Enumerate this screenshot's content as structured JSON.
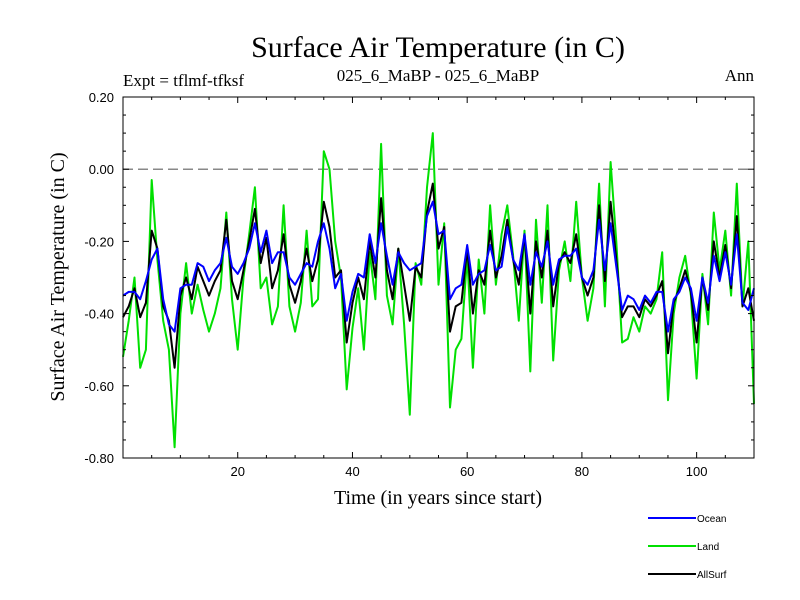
{
  "chart_data": {
    "type": "line",
    "title": "Surface Air Temperature (in C)",
    "subtitle_left": "Expt = tflmf-tfksf",
    "subtitle_center": "025_6_MaBP - 025_6_MaBP",
    "subtitle_right": "Ann",
    "xlabel": "Time (in years since start)",
    "ylabel": "Surface Air Temperature (in C)",
    "xlim": [
      0,
      110
    ],
    "ylim": [
      -0.8,
      0.2
    ],
    "xticks": [
      20,
      40,
      60,
      80,
      100
    ],
    "xtick_labels": [
      "20",
      "40",
      "60",
      "80",
      "100"
    ],
    "yticks": [
      0.2,
      0.0,
      -0.2,
      -0.4,
      -0.6,
      -0.8
    ],
    "ytick_labels": [
      "0.20",
      "0.00",
      "-0.20",
      "-0.40",
      "-0.60",
      "-0.80"
    ],
    "reference_line": {
      "y": 0.0,
      "style": "dashed"
    },
    "legend_position": "bottom-right",
    "x": [
      0,
      1,
      2,
      3,
      4,
      5,
      6,
      7,
      8,
      9,
      10,
      11,
      12,
      13,
      14,
      15,
      16,
      17,
      18,
      19,
      20,
      21,
      22,
      23,
      24,
      25,
      26,
      27,
      28,
      29,
      30,
      31,
      32,
      33,
      34,
      35,
      36,
      37,
      38,
      39,
      40,
      41,
      42,
      43,
      44,
      45,
      46,
      47,
      48,
      49,
      50,
      51,
      52,
      53,
      54,
      55,
      56,
      57,
      58,
      59,
      60,
      61,
      62,
      63,
      64,
      65,
      66,
      67,
      68,
      69,
      70,
      71,
      72,
      73,
      74,
      75,
      76,
      77,
      78,
      79,
      80,
      81,
      82,
      83,
      84,
      85,
      86,
      87,
      88,
      89,
      90,
      91,
      92,
      93,
      94,
      95,
      96,
      97,
      98,
      99,
      100,
      101,
      102,
      103,
      104,
      105,
      106,
      107,
      108,
      109,
      110
    ],
    "series": [
      {
        "name": "Land",
        "color": "#00e000",
        "values": [
          -0.52,
          -0.42,
          -0.3,
          -0.55,
          -0.5,
          -0.03,
          -0.25,
          -0.42,
          -0.5,
          -0.77,
          -0.4,
          -0.26,
          -0.4,
          -0.32,
          -0.39,
          -0.45,
          -0.4,
          -0.33,
          -0.12,
          -0.36,
          -0.5,
          -0.3,
          -0.18,
          -0.05,
          -0.33,
          -0.3,
          -0.43,
          -0.38,
          -0.1,
          -0.38,
          -0.45,
          -0.37,
          -0.17,
          -0.38,
          -0.36,
          0.05,
          0.0,
          -0.2,
          -0.3,
          -0.61,
          -0.44,
          -0.33,
          -0.5,
          -0.23,
          -0.36,
          0.07,
          -0.35,
          -0.43,
          -0.22,
          -0.43,
          -0.68,
          -0.26,
          -0.32,
          -0.05,
          0.1,
          -0.32,
          -0.15,
          -0.66,
          -0.5,
          -0.47,
          -0.24,
          -0.55,
          -0.25,
          -0.4,
          -0.1,
          -0.32,
          -0.18,
          -0.1,
          -0.24,
          -0.42,
          -0.17,
          -0.56,
          -0.14,
          -0.37,
          -0.1,
          -0.53,
          -0.28,
          -0.2,
          -0.31,
          -0.09,
          -0.3,
          -0.42,
          -0.33,
          -0.04,
          -0.38,
          0.02,
          -0.2,
          -0.48,
          -0.47,
          -0.41,
          -0.45,
          -0.38,
          -0.4,
          -0.36,
          -0.23,
          -0.64,
          -0.4,
          -0.3,
          -0.24,
          -0.35,
          -0.58,
          -0.29,
          -0.43,
          -0.12,
          -0.28,
          -0.17,
          -0.35,
          -0.04,
          -0.38,
          -0.2,
          -0.65
        ]
      },
      {
        "name": "AllSurf",
        "color": "#000000",
        "values": [
          -0.41,
          -0.38,
          -0.33,
          -0.41,
          -0.37,
          -0.17,
          -0.22,
          -0.38,
          -0.42,
          -0.55,
          -0.35,
          -0.3,
          -0.36,
          -0.27,
          -0.31,
          -0.35,
          -0.31,
          -0.28,
          -0.14,
          -0.31,
          -0.36,
          -0.28,
          -0.2,
          -0.11,
          -0.26,
          -0.19,
          -0.33,
          -0.28,
          -0.18,
          -0.32,
          -0.37,
          -0.31,
          -0.22,
          -0.31,
          -0.25,
          -0.09,
          -0.16,
          -0.3,
          -0.28,
          -0.48,
          -0.37,
          -0.3,
          -0.36,
          -0.2,
          -0.3,
          -0.08,
          -0.28,
          -0.36,
          -0.22,
          -0.32,
          -0.42,
          -0.27,
          -0.3,
          -0.12,
          -0.04,
          -0.22,
          -0.16,
          -0.45,
          -0.38,
          -0.37,
          -0.22,
          -0.4,
          -0.28,
          -0.32,
          -0.17,
          -0.3,
          -0.24,
          -0.14,
          -0.25,
          -0.32,
          -0.18,
          -0.4,
          -0.2,
          -0.3,
          -0.17,
          -0.38,
          -0.26,
          -0.23,
          -0.26,
          -0.18,
          -0.3,
          -0.35,
          -0.3,
          -0.1,
          -0.31,
          -0.09,
          -0.25,
          -0.41,
          -0.38,
          -0.38,
          -0.41,
          -0.36,
          -0.38,
          -0.35,
          -0.31,
          -0.51,
          -0.37,
          -0.33,
          -0.28,
          -0.34,
          -0.48,
          -0.3,
          -0.39,
          -0.2,
          -0.3,
          -0.21,
          -0.33,
          -0.13,
          -0.38,
          -0.33,
          -0.42
        ]
      },
      {
        "name": "Ocean",
        "color": "#0000ff",
        "values": [
          -0.35,
          -0.34,
          -0.34,
          -0.36,
          -0.31,
          -0.25,
          -0.22,
          -0.36,
          -0.43,
          -0.45,
          -0.33,
          -0.32,
          -0.32,
          -0.26,
          -0.27,
          -0.31,
          -0.28,
          -0.26,
          -0.19,
          -0.27,
          -0.29,
          -0.26,
          -0.22,
          -0.15,
          -0.23,
          -0.17,
          -0.26,
          -0.23,
          -0.23,
          -0.3,
          -0.32,
          -0.29,
          -0.26,
          -0.27,
          -0.2,
          -0.15,
          -0.22,
          -0.33,
          -0.29,
          -0.42,
          -0.34,
          -0.29,
          -0.3,
          -0.18,
          -0.26,
          -0.15,
          -0.24,
          -0.32,
          -0.23,
          -0.26,
          -0.28,
          -0.27,
          -0.26,
          -0.13,
          -0.09,
          -0.18,
          -0.17,
          -0.36,
          -0.33,
          -0.32,
          -0.21,
          -0.32,
          -0.29,
          -0.28,
          -0.21,
          -0.28,
          -0.27,
          -0.16,
          -0.25,
          -0.28,
          -0.18,
          -0.32,
          -0.23,
          -0.27,
          -0.2,
          -0.32,
          -0.25,
          -0.24,
          -0.24,
          -0.22,
          -0.3,
          -0.32,
          -0.28,
          -0.14,
          -0.28,
          -0.15,
          -0.27,
          -0.39,
          -0.35,
          -0.36,
          -0.39,
          -0.35,
          -0.37,
          -0.34,
          -0.34,
          -0.45,
          -0.36,
          -0.34,
          -0.3,
          -0.33,
          -0.42,
          -0.3,
          -0.37,
          -0.24,
          -0.31,
          -0.23,
          -0.32,
          -0.18,
          -0.37,
          -0.39,
          -0.33
        ]
      }
    ]
  }
}
